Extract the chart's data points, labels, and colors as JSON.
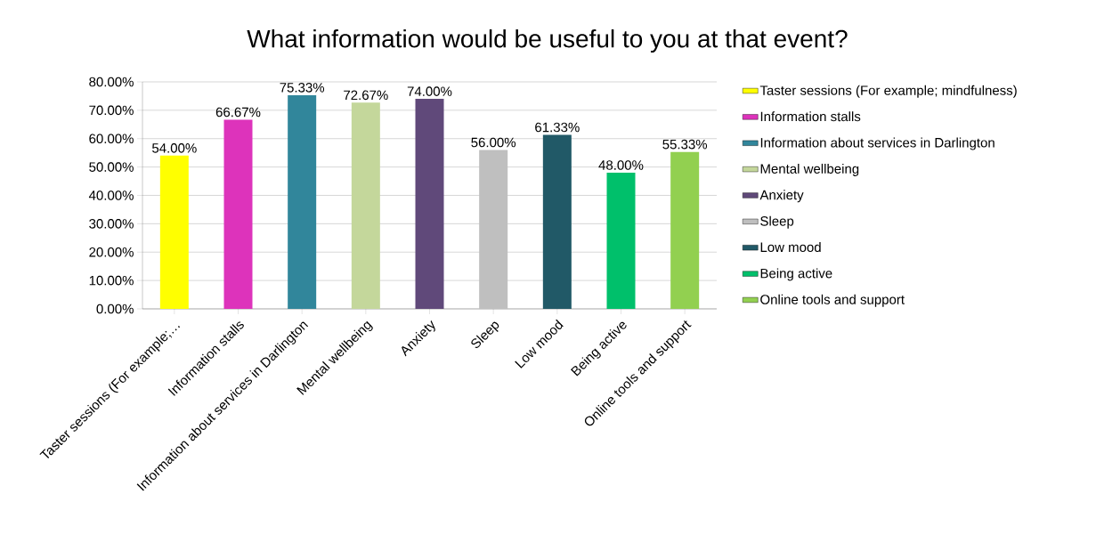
{
  "chart_data": {
    "type": "bar",
    "title": "What information would be useful to you at that event?",
    "categories": [
      "Taster sessions (For example;…",
      "Information stalls",
      "Information about services in Darlington",
      "Mental wellbeing",
      "Anxiety",
      "Sleep",
      "Low mood",
      "Being active",
      "Online tools and support"
    ],
    "series": [
      {
        "name": "Taster sessions (For example; mindfulness)",
        "color": "#ffff00",
        "values": [
          54.0,
          null,
          null,
          null,
          null,
          null,
          null,
          null,
          null
        ],
        "value_labels": [
          "54.00%",
          null,
          null,
          null,
          null,
          null,
          null,
          null,
          null
        ]
      },
      {
        "name": "Information stalls",
        "color": "#dd33bb",
        "values": [
          null,
          66.67,
          null,
          null,
          null,
          null,
          null,
          null,
          null
        ],
        "value_labels": [
          null,
          "66.67%",
          null,
          null,
          null,
          null,
          null,
          null,
          null
        ]
      },
      {
        "name": "Information about services in Darlington",
        "color": "#31869b",
        "values": [
          null,
          null,
          75.33,
          null,
          null,
          null,
          null,
          null,
          null
        ],
        "value_labels": [
          null,
          null,
          "75.33%",
          null,
          null,
          null,
          null,
          null,
          null
        ]
      },
      {
        "name": "Mental wellbeing",
        "color": "#c4d79b",
        "values": [
          null,
          null,
          null,
          72.67,
          null,
          null,
          null,
          null,
          null
        ],
        "value_labels": [
          null,
          null,
          null,
          "72.67%",
          null,
          null,
          null,
          null,
          null
        ]
      },
      {
        "name": "Anxiety",
        "color": "#60497a",
        "values": [
          null,
          null,
          null,
          null,
          74.0,
          null,
          null,
          null,
          null
        ],
        "value_labels": [
          null,
          null,
          null,
          null,
          "74.00%",
          null,
          null,
          null,
          null
        ]
      },
      {
        "name": "Sleep",
        "color": "#bfbfbf",
        "values": [
          null,
          null,
          null,
          null,
          null,
          56.0,
          null,
          null,
          null
        ],
        "value_labels": [
          null,
          null,
          null,
          null,
          null,
          "56.00%",
          null,
          null,
          null
        ]
      },
      {
        "name": "Low mood",
        "color": "#215967",
        "values": [
          null,
          null,
          null,
          null,
          null,
          null,
          61.33,
          null,
          null
        ],
        "value_labels": [
          null,
          null,
          null,
          null,
          null,
          null,
          "61.33%",
          null,
          null
        ]
      },
      {
        "name": "Being active",
        "color": "#00c06b",
        "values": [
          null,
          null,
          null,
          null,
          null,
          null,
          null,
          48.0,
          null
        ],
        "value_labels": [
          null,
          null,
          null,
          null,
          null,
          null,
          null,
          "48.00%",
          null
        ]
      },
      {
        "name": "Online tools and support",
        "color": "#92d050",
        "values": [
          null,
          null,
          null,
          null,
          null,
          null,
          null,
          null,
          55.33
        ],
        "value_labels": [
          null,
          null,
          null,
          null,
          null,
          null,
          null,
          null,
          "55.33%"
        ]
      }
    ],
    "ylim": [
      0,
      80
    ],
    "yticks": [
      {
        "value": 0,
        "label": "0.00%"
      },
      {
        "value": 10,
        "label": "10.00%"
      },
      {
        "value": 20,
        "label": "20.00%"
      },
      {
        "value": 30,
        "label": "30.00%"
      },
      {
        "value": 40,
        "label": "40.00%"
      },
      {
        "value": 50,
        "label": "50.00%"
      },
      {
        "value": 60,
        "label": "60.00%"
      },
      {
        "value": 70,
        "label": "70.00%"
      },
      {
        "value": 80,
        "label": "80.00%"
      }
    ],
    "grid": "y",
    "legend": "right"
  }
}
